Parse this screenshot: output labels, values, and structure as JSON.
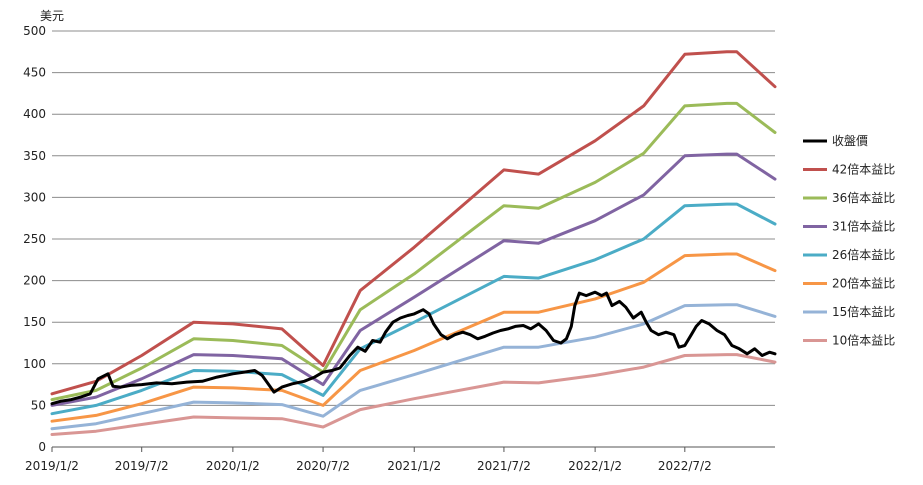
{
  "chart_data": {
    "type": "line",
    "ylabel": "美元",
    "ylim": [
      0,
      500
    ],
    "yticks": [
      0,
      50,
      100,
      150,
      200,
      250,
      300,
      350,
      400,
      450,
      500
    ],
    "xlim": [
      "2019-01-02",
      "2022-12-31"
    ],
    "xticks": [
      {
        "date": "2019-01-02",
        "label": "2019/1/2"
      },
      {
        "date": "2019-07-02",
        "label": "2019/7/2"
      },
      {
        "date": "2020-01-02",
        "label": "2020/1/2"
      },
      {
        "date": "2020-07-02",
        "label": "2020/7/2"
      },
      {
        "date": "2021-01-02",
        "label": "2021/1/2"
      },
      {
        "date": "2021-07-02",
        "label": "2021/7/2"
      },
      {
        "date": "2022-01-02",
        "label": "2022/1/2"
      },
      {
        "date": "2022-07-02",
        "label": "2022/7/2"
      }
    ],
    "grid": true,
    "legend_position": "right",
    "series": [
      {
        "name": "收盤價",
        "color": "#000000",
        "points": [
          [
            "2019-01-02",
            52
          ],
          [
            "2019-01-20",
            55
          ],
          [
            "2019-02-10",
            57
          ],
          [
            "2019-03-01",
            60
          ],
          [
            "2019-03-20",
            64
          ],
          [
            "2019-04-05",
            82
          ],
          [
            "2019-04-25",
            88
          ],
          [
            "2019-05-05",
            73
          ],
          [
            "2019-05-20",
            72
          ],
          [
            "2019-06-10",
            74
          ],
          [
            "2019-07-02",
            75
          ],
          [
            "2019-08-01",
            77
          ],
          [
            "2019-09-01",
            76
          ],
          [
            "2019-10-01",
            78
          ],
          [
            "2019-11-01",
            79
          ],
          [
            "2019-12-01",
            84
          ],
          [
            "2020-01-02",
            88
          ],
          [
            "2020-01-25",
            90
          ],
          [
            "2020-02-15",
            92
          ],
          [
            "2020-03-01",
            86
          ],
          [
            "2020-03-18",
            72
          ],
          [
            "2020-03-25",
            66
          ],
          [
            "2020-04-10",
            72
          ],
          [
            "2020-05-01",
            76
          ],
          [
            "2020-05-25",
            79
          ],
          [
            "2020-06-15",
            84
          ],
          [
            "2020-07-02",
            90
          ],
          [
            "2020-07-20",
            92
          ],
          [
            "2020-08-05",
            95
          ],
          [
            "2020-08-25",
            110
          ],
          [
            "2020-09-10",
            120
          ],
          [
            "2020-09-25",
            115
          ],
          [
            "2020-10-10",
            128
          ],
          [
            "2020-10-25",
            126
          ],
          [
            "2020-11-05",
            138
          ],
          [
            "2020-11-20",
            150
          ],
          [
            "2020-12-05",
            155
          ],
          [
            "2020-12-20",
            158
          ],
          [
            "2021-01-02",
            160
          ],
          [
            "2021-01-20",
            165
          ],
          [
            "2021-02-01",
            160
          ],
          [
            "2021-02-10",
            148
          ],
          [
            "2021-02-25",
            135
          ],
          [
            "2021-03-10",
            130
          ],
          [
            "2021-03-25",
            135
          ],
          [
            "2021-04-10",
            138
          ],
          [
            "2021-04-25",
            135
          ],
          [
            "2021-05-10",
            130
          ],
          [
            "2021-05-25",
            133
          ],
          [
            "2021-06-10",
            137
          ],
          [
            "2021-06-25",
            140
          ],
          [
            "2021-07-10",
            142
          ],
          [
            "2021-07-25",
            145
          ],
          [
            "2021-08-10",
            146
          ],
          [
            "2021-08-25",
            142
          ],
          [
            "2021-09-10",
            148
          ],
          [
            "2021-09-25",
            140
          ],
          [
            "2021-10-10",
            128
          ],
          [
            "2021-10-25",
            125
          ],
          [
            "2021-11-05",
            130
          ],
          [
            "2021-11-15",
            145
          ],
          [
            "2021-11-22",
            170
          ],
          [
            "2021-12-01",
            185
          ],
          [
            "2021-12-15",
            182
          ],
          [
            "2022-01-02",
            186
          ],
          [
            "2022-01-15",
            182
          ],
          [
            "2022-01-25",
            185
          ],
          [
            "2022-02-05",
            170
          ],
          [
            "2022-02-20",
            175
          ],
          [
            "2022-03-05",
            168
          ],
          [
            "2022-03-20",
            155
          ],
          [
            "2022-04-05",
            162
          ],
          [
            "2022-04-15",
            150
          ],
          [
            "2022-04-25",
            140
          ],
          [
            "2022-05-10",
            135
          ],
          [
            "2022-05-25",
            138
          ],
          [
            "2022-06-10",
            135
          ],
          [
            "2022-06-20",
            120
          ],
          [
            "2022-07-02",
            122
          ],
          [
            "2022-07-15",
            135
          ],
          [
            "2022-07-25",
            145
          ],
          [
            "2022-08-05",
            152
          ],
          [
            "2022-08-20",
            148
          ],
          [
            "2022-09-05",
            140
          ],
          [
            "2022-09-20",
            135
          ],
          [
            "2022-10-05",
            122
          ],
          [
            "2022-10-20",
            118
          ],
          [
            "2022-11-05",
            112
          ],
          [
            "2022-11-20",
            118
          ],
          [
            "2022-12-05",
            110
          ],
          [
            "2022-12-20",
            114
          ],
          [
            "2022-12-31",
            112
          ]
        ]
      },
      {
        "name": "42倍本益比",
        "color": "#c0504d",
        "points": [
          [
            "2019-01-02",
            64
          ],
          [
            "2019-04-01",
            79
          ],
          [
            "2019-07-02",
            110
          ],
          [
            "2019-10-15",
            150
          ],
          [
            "2020-01-02",
            148
          ],
          [
            "2020-04-10",
            142
          ],
          [
            "2020-07-02",
            98
          ],
          [
            "2020-09-15",
            188
          ],
          [
            "2021-01-02",
            240
          ],
          [
            "2021-07-02",
            333
          ],
          [
            "2021-09-10",
            328
          ],
          [
            "2022-01-02",
            368
          ],
          [
            "2022-04-10",
            410
          ],
          [
            "2022-07-02",
            472
          ],
          [
            "2022-09-25",
            475
          ],
          [
            "2022-10-15",
            475
          ],
          [
            "2022-12-31",
            433
          ]
        ]
      },
      {
        "name": "36倍本益比",
        "color": "#9bbb59",
        "points": [
          [
            "2019-01-02",
            57
          ],
          [
            "2019-04-01",
            68
          ],
          [
            "2019-07-02",
            95
          ],
          [
            "2019-10-15",
            130
          ],
          [
            "2020-01-02",
            128
          ],
          [
            "2020-04-10",
            122
          ],
          [
            "2020-07-02",
            90
          ],
          [
            "2020-09-15",
            165
          ],
          [
            "2021-01-02",
            208
          ],
          [
            "2021-07-02",
            290
          ],
          [
            "2021-09-10",
            287
          ],
          [
            "2022-01-02",
            318
          ],
          [
            "2022-04-10",
            353
          ],
          [
            "2022-07-02",
            410
          ],
          [
            "2022-09-25",
            413
          ],
          [
            "2022-10-15",
            413
          ],
          [
            "2022-12-31",
            378
          ]
        ]
      },
      {
        "name": "31倍本益比",
        "color": "#8064a2",
        "points": [
          [
            "2019-01-02",
            50
          ],
          [
            "2019-04-01",
            60
          ],
          [
            "2019-07-02",
            82
          ],
          [
            "2019-10-15",
            111
          ],
          [
            "2020-01-02",
            110
          ],
          [
            "2020-04-10",
            106
          ],
          [
            "2020-07-02",
            75
          ],
          [
            "2020-09-15",
            140
          ],
          [
            "2021-01-02",
            180
          ],
          [
            "2021-07-02",
            248
          ],
          [
            "2021-09-10",
            245
          ],
          [
            "2022-01-02",
            272
          ],
          [
            "2022-04-10",
            303
          ],
          [
            "2022-07-02",
            350
          ],
          [
            "2022-09-25",
            352
          ],
          [
            "2022-10-15",
            352
          ],
          [
            "2022-12-31",
            322
          ]
        ]
      },
      {
        "name": "26倍本益比",
        "color": "#4bacc6",
        "points": [
          [
            "2019-01-02",
            40
          ],
          [
            "2019-04-01",
            50
          ],
          [
            "2019-07-02",
            68
          ],
          [
            "2019-10-15",
            92
          ],
          [
            "2020-01-02",
            91
          ],
          [
            "2020-04-10",
            87
          ],
          [
            "2020-07-02",
            62
          ],
          [
            "2020-09-15",
            118
          ],
          [
            "2021-01-02",
            150
          ],
          [
            "2021-07-02",
            205
          ],
          [
            "2021-09-10",
            203
          ],
          [
            "2022-01-02",
            225
          ],
          [
            "2022-04-10",
            250
          ],
          [
            "2022-07-02",
            290
          ],
          [
            "2022-09-25",
            292
          ],
          [
            "2022-10-15",
            292
          ],
          [
            "2022-12-31",
            268
          ]
        ]
      },
      {
        "name": "20倍本益比",
        "color": "#f79646",
        "points": [
          [
            "2019-01-02",
            31
          ],
          [
            "2019-04-01",
            38
          ],
          [
            "2019-07-02",
            52
          ],
          [
            "2019-10-15",
            72
          ],
          [
            "2020-01-02",
            71
          ],
          [
            "2020-04-10",
            68
          ],
          [
            "2020-07-02",
            50
          ],
          [
            "2020-09-15",
            92
          ],
          [
            "2021-01-02",
            116
          ],
          [
            "2021-07-02",
            162
          ],
          [
            "2021-09-10",
            162
          ],
          [
            "2022-01-02",
            178
          ],
          [
            "2022-04-10",
            198
          ],
          [
            "2022-07-02",
            230
          ],
          [
            "2022-09-25",
            232
          ],
          [
            "2022-10-15",
            232
          ],
          [
            "2022-12-31",
            212
          ]
        ]
      },
      {
        "name": "15倍本益比",
        "color": "#95b3d7",
        "points": [
          [
            "2019-01-02",
            22
          ],
          [
            "2019-04-01",
            28
          ],
          [
            "2019-07-02",
            40
          ],
          [
            "2019-10-15",
            54
          ],
          [
            "2020-01-02",
            53
          ],
          [
            "2020-04-10",
            51
          ],
          [
            "2020-07-02",
            37
          ],
          [
            "2020-09-15",
            68
          ],
          [
            "2021-01-02",
            87
          ],
          [
            "2021-07-02",
            120
          ],
          [
            "2021-09-10",
            120
          ],
          [
            "2022-01-02",
            132
          ],
          [
            "2022-04-10",
            148
          ],
          [
            "2022-07-02",
            170
          ],
          [
            "2022-09-25",
            171
          ],
          [
            "2022-10-15",
            171
          ],
          [
            "2022-12-31",
            157
          ]
        ]
      },
      {
        "name": "10倍本益比",
        "color": "#d99694",
        "points": [
          [
            "2019-01-02",
            15
          ],
          [
            "2019-04-01",
            19
          ],
          [
            "2019-07-02",
            27
          ],
          [
            "2019-10-15",
            36
          ],
          [
            "2020-01-02",
            35
          ],
          [
            "2020-04-10",
            34
          ],
          [
            "2020-07-02",
            24
          ],
          [
            "2020-09-15",
            45
          ],
          [
            "2021-01-02",
            58
          ],
          [
            "2021-07-02",
            78
          ],
          [
            "2021-09-10",
            77
          ],
          [
            "2022-01-02",
            86
          ],
          [
            "2022-04-10",
            96
          ],
          [
            "2022-07-02",
            110
          ],
          [
            "2022-09-25",
            111
          ],
          [
            "2022-10-15",
            111
          ],
          [
            "2022-12-31",
            102
          ]
        ]
      }
    ]
  }
}
